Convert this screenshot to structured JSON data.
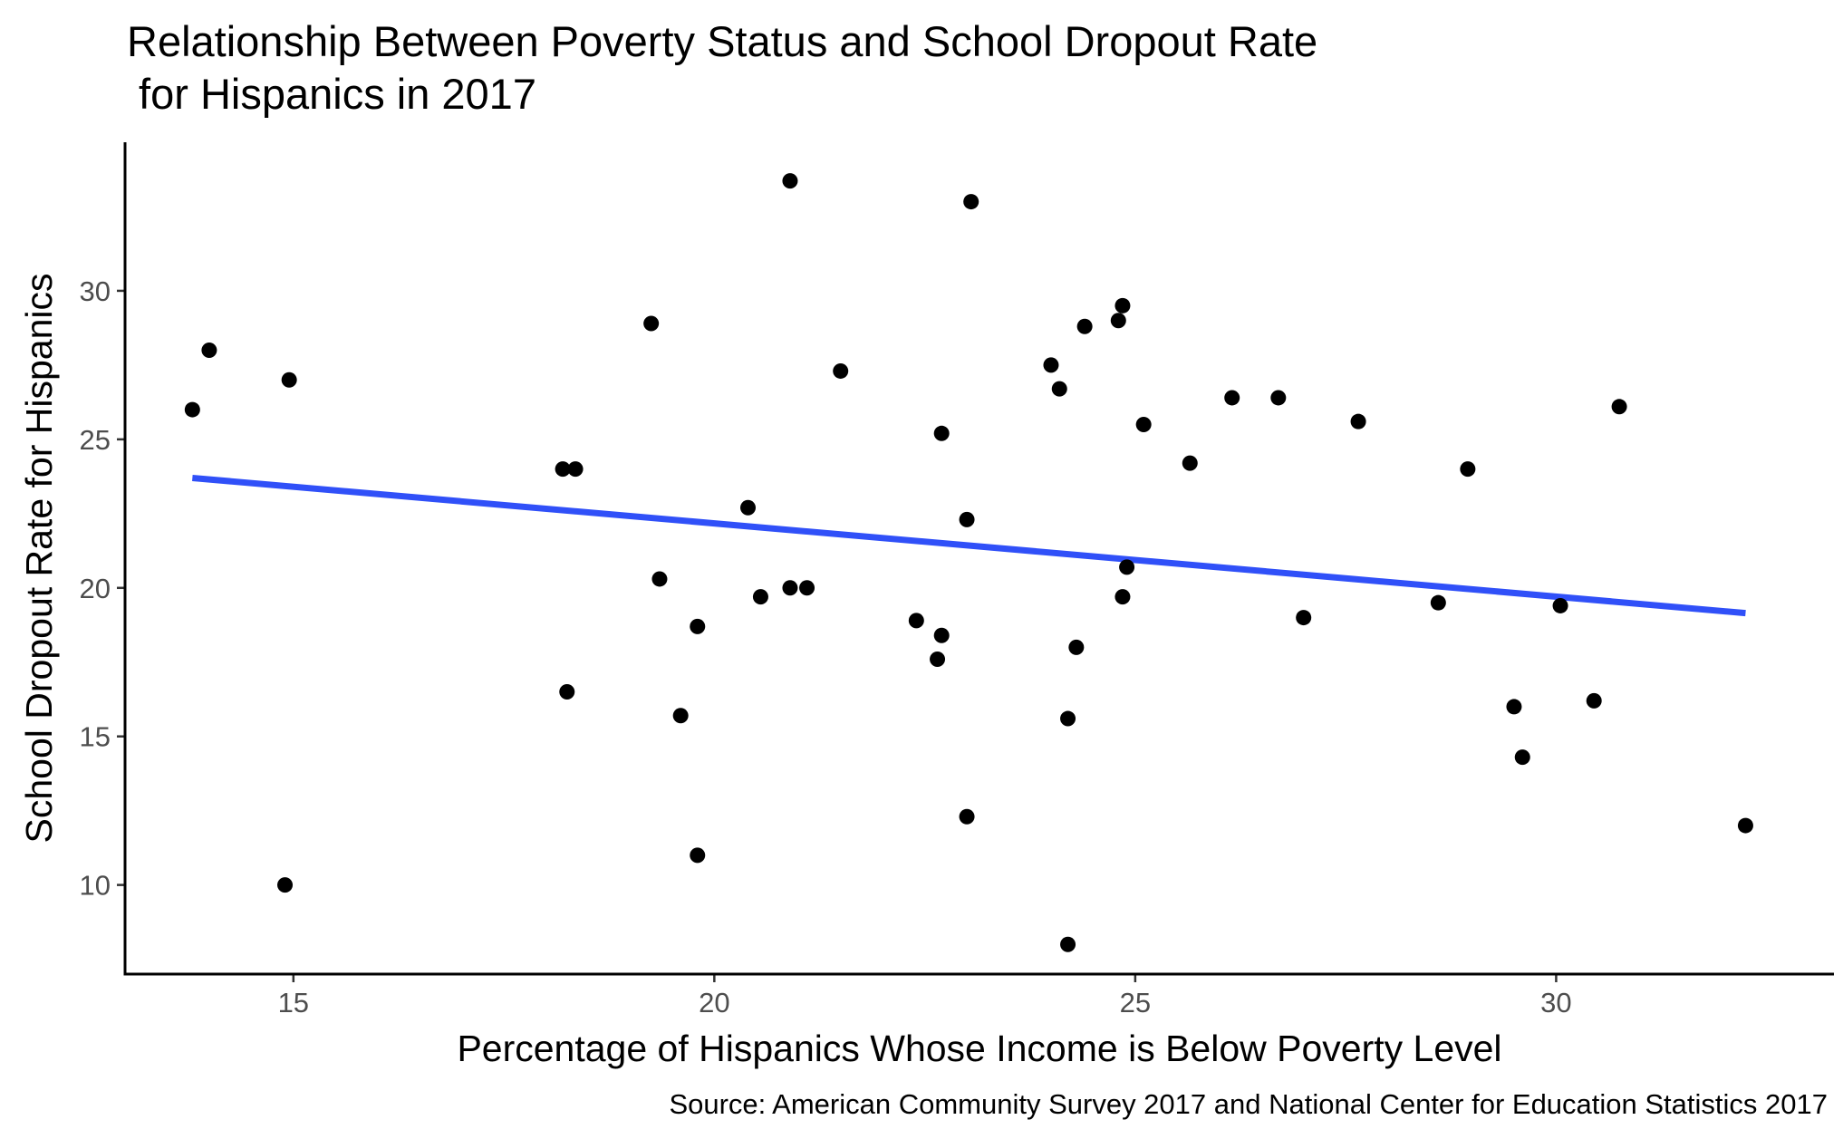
{
  "chart_data": {
    "type": "scatter",
    "title_lines": [
      "Relationship Between Poverty Status and School Dropout Rate",
      " for Hispanics in 2017"
    ],
    "xlabel": "Percentage of Hispanics Whose Income is Below Poverty Level",
    "ylabel": "School Dropout Rate for Hispanics",
    "caption": "Source: American Community Survey 2017 and National Center for Education Statistics 2017",
    "xlim": [
      13.0,
      33.3
    ],
    "ylim": [
      7.0,
      35.0
    ],
    "x_ticks": [
      15,
      20,
      25,
      30
    ],
    "y_ticks": [
      10,
      15,
      20,
      25,
      30
    ],
    "grid": false,
    "legend": "none",
    "point_color": "#000000",
    "points": [
      {
        "x": 13.8,
        "y": 26.0
      },
      {
        "x": 14.0,
        "y": 28.0
      },
      {
        "x": 14.9,
        "y": 10.0
      },
      {
        "x": 14.95,
        "y": 27.0
      },
      {
        "x": 18.2,
        "y": 24.0
      },
      {
        "x": 18.25,
        "y": 16.5
      },
      {
        "x": 18.35,
        "y": 24.0
      },
      {
        "x": 19.25,
        "y": 28.9
      },
      {
        "x": 19.35,
        "y": 20.3
      },
      {
        "x": 19.6,
        "y": 15.7
      },
      {
        "x": 19.8,
        "y": 18.7
      },
      {
        "x": 19.8,
        "y": 11.0
      },
      {
        "x": 20.4,
        "y": 22.7
      },
      {
        "x": 20.55,
        "y": 19.7
      },
      {
        "x": 20.9,
        "y": 33.7
      },
      {
        "x": 20.9,
        "y": 20.0
      },
      {
        "x": 21.1,
        "y": 20.0
      },
      {
        "x": 21.5,
        "y": 27.3
      },
      {
        "x": 22.4,
        "y": 18.9
      },
      {
        "x": 22.65,
        "y": 17.6
      },
      {
        "x": 22.7,
        "y": 25.2
      },
      {
        "x": 22.7,
        "y": 18.4
      },
      {
        "x": 23.0,
        "y": 22.3
      },
      {
        "x": 23.0,
        "y": 12.3
      },
      {
        "x": 23.05,
        "y": 33.0
      },
      {
        "x": 24.0,
        "y": 27.5
      },
      {
        "x": 24.1,
        "y": 26.7
      },
      {
        "x": 24.2,
        "y": 15.6
      },
      {
        "x": 24.2,
        "y": 8.0
      },
      {
        "x": 24.3,
        "y": 18.0
      },
      {
        "x": 24.4,
        "y": 28.8
      },
      {
        "x": 24.8,
        "y": 29.0
      },
      {
        "x": 24.85,
        "y": 29.5
      },
      {
        "x": 24.85,
        "y": 19.7
      },
      {
        "x": 24.9,
        "y": 20.7
      },
      {
        "x": 25.1,
        "y": 25.5
      },
      {
        "x": 25.65,
        "y": 24.2
      },
      {
        "x": 26.15,
        "y": 26.4
      },
      {
        "x": 26.7,
        "y": 26.4
      },
      {
        "x": 27.0,
        "y": 19.0
      },
      {
        "x": 27.65,
        "y": 25.6
      },
      {
        "x": 28.6,
        "y": 19.5
      },
      {
        "x": 28.95,
        "y": 24.0
      },
      {
        "x": 29.5,
        "y": 16.0
      },
      {
        "x": 29.6,
        "y": 14.3
      },
      {
        "x": 30.05,
        "y": 19.4
      },
      {
        "x": 30.45,
        "y": 16.2
      },
      {
        "x": 30.75,
        "y": 26.1
      },
      {
        "x": 32.25,
        "y": 12.0
      }
    ],
    "trend_line": {
      "color": "#3050f8",
      "x": [
        13.8,
        32.25
      ],
      "y": [
        23.7,
        19.15
      ]
    }
  }
}
